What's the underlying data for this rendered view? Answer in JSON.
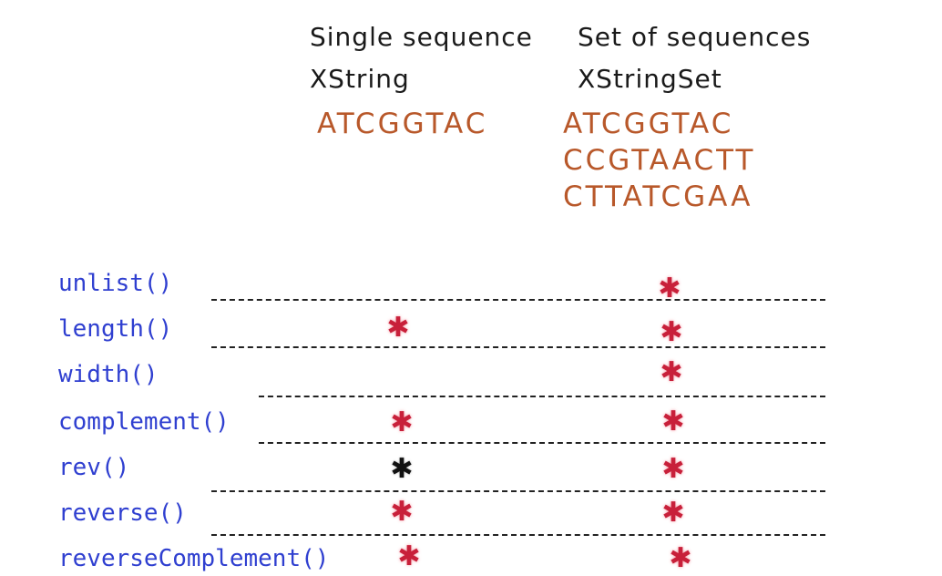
{
  "headers": {
    "single_title": "Single sequence",
    "single_type": "XString",
    "set_title": "Set of sequences",
    "set_type": "XStringSet"
  },
  "sequences": {
    "single": "ATCGGTAC",
    "set": [
      "ATCGGTAC",
      "CCGTAACTT",
      "CTTATCGAA"
    ]
  },
  "functions": [
    {
      "name": "unlist()",
      "single": "",
      "set": "red"
    },
    {
      "name": "length()",
      "single": "red",
      "set": "red"
    },
    {
      "name": "width()",
      "single": "",
      "set": "red"
    },
    {
      "name": "complement()",
      "single": "red",
      "set": "red"
    },
    {
      "name": "rev()",
      "single": "black",
      "set": "red"
    },
    {
      "name": "reverse()",
      "single": "red",
      "set": "red"
    },
    {
      "name": "reverseComplement()",
      "single": "red",
      "set": "red"
    }
  ],
  "mark_symbol": "✱",
  "colors": {
    "sequence": "#b8582a",
    "function": "#2f3fd0",
    "mark_red": "#c8203a",
    "mark_black": "#111111"
  }
}
